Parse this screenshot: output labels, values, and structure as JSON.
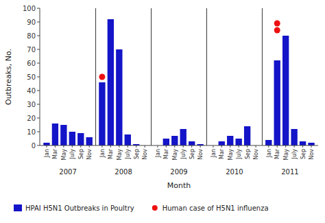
{
  "chart_data": {
    "type": "bar",
    "title": "",
    "ylabel": "Outbreaks, No.",
    "xlabel": "Month",
    "categories": [
      "Jan",
      "Mar",
      "May",
      "July",
      "Sep",
      "Nov",
      "Jan",
      "Mar",
      "May",
      "July",
      "Sep",
      "Nov",
      "Jan",
      "Mar",
      "May",
      "July",
      "Sep",
      "Nov",
      "Jan",
      "Mar",
      "May",
      "July",
      "Sep",
      "Nov",
      "Jan",
      "Mar",
      "May",
      "July",
      "Sep",
      "Nov"
    ],
    "groups": [
      "2007",
      "2008",
      "2009",
      "2010",
      "2011"
    ],
    "series": [
      {
        "name": "HPAI H5N1 Outbreaks in Poultry",
        "type": "bar",
        "color": "#1414C8",
        "values": [
          2,
          16,
          15,
          10,
          9,
          6,
          46,
          92,
          70,
          8,
          1,
          0,
          0,
          5,
          7,
          12,
          3,
          1,
          0,
          3,
          7,
          5,
          14,
          0,
          4,
          62,
          80,
          12,
          3,
          2
        ]
      },
      {
        "name": "Human case of H5N1 influenza",
        "type": "scatter",
        "color": "#EE1111",
        "marker": "circle",
        "values": [
          null,
          null,
          null,
          null,
          null,
          null,
          [
            50
          ],
          null,
          null,
          null,
          null,
          null,
          null,
          null,
          null,
          null,
          null,
          null,
          null,
          null,
          null,
          null,
          null,
          null,
          null,
          [
            89,
            84
          ],
          null,
          null,
          null,
          null
        ]
      }
    ],
    "ylim": [
      0,
      100
    ],
    "yticks": [
      0,
      10,
      20,
      30,
      40,
      50,
      60,
      70,
      80,
      90,
      100
    ],
    "grid": false,
    "legend": "bottom"
  }
}
